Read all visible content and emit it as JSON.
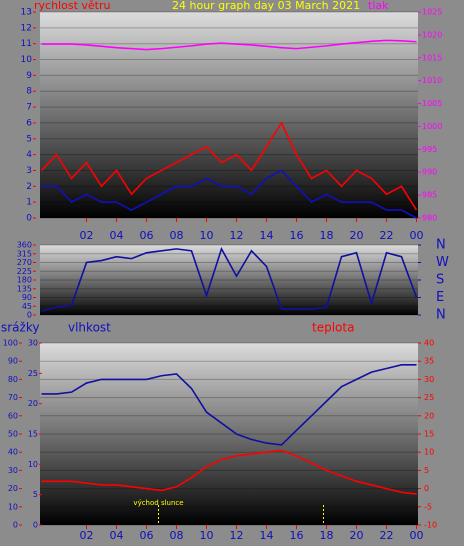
{
  "chart_data": [
    {
      "type": "line",
      "title": "24 hour graph day  03 March 2021",
      "x": [
        -1,
        0,
        1,
        2,
        3,
        4,
        5,
        6,
        7,
        8,
        9,
        10,
        11,
        12,
        13,
        14,
        15,
        16,
        17,
        18,
        19,
        20,
        21,
        22,
        23,
        24
      ],
      "xlim": [
        -1.1,
        24.1
      ],
      "xticks": [
        {
          "value": 2,
          "label": "02"
        },
        {
          "value": 4,
          "label": "04"
        },
        {
          "value": 6,
          "label": "06"
        },
        {
          "value": 8,
          "label": "08"
        },
        10,
        12,
        14,
        16,
        18,
        20,
        22,
        {
          "value": 24,
          "label": "00"
        }
      ],
      "ylim": [
        0,
        13
      ],
      "yticks": [
        0,
        1,
        2,
        3,
        4,
        5,
        6,
        7,
        8,
        9,
        10,
        11,
        12,
        13
      ],
      "y2lim": [
        980,
        1025
      ],
      "y2ticks": [
        980,
        985,
        990,
        995,
        1000,
        1005,
        1010,
        1015,
        1020,
        1025
      ],
      "grid": true,
      "series": [
        {
          "name": "rychlost větru",
          "color": "#ff0000",
          "values": [
            3,
            4,
            2.5,
            3.5,
            2,
            3,
            1.5,
            2.5,
            3,
            3.5,
            4,
            4.5,
            3.5,
            4,
            3,
            4.5,
            6,
            4,
            2.5,
            3,
            2,
            3,
            2.5,
            1.5,
            2,
            0.5
          ]
        },
        {
          "color": "#1010c0",
          "values": [
            2,
            2,
            1,
            1.5,
            1,
            1,
            0.5,
            1,
            1.5,
            2,
            2,
            2.5,
            2,
            2,
            1.5,
            2.5,
            3,
            2,
            1,
            1.5,
            1,
            1,
            1,
            0.5,
            0.5,
            0
          ]
        },
        {
          "name": "tlak",
          "color": "#ff00ff",
          "axis": "y2",
          "values": [
            1018,
            1018,
            1018,
            1017.8,
            1017.5,
            1017.2,
            1017,
            1016.8,
            1017,
            1017.3,
            1017.6,
            1018,
            1018.2,
            1018,
            1017.8,
            1017.5,
            1017.2,
            1017,
            1017.3,
            1017.6,
            1018,
            1018.3,
            1018.6,
            1018.8,
            1018.7,
            1018.5
          ]
        }
      ]
    },
    {
      "type": "line",
      "x": [
        -1,
        0,
        1,
        2,
        3,
        4,
        5,
        6,
        7,
        8,
        9,
        10,
        11,
        12,
        13,
        14,
        15,
        16,
        17,
        18,
        19,
        20,
        21,
        22,
        23,
        24
      ],
      "xlim": [
        -1.1,
        24.1
      ],
      "ylim": [
        0,
        360
      ],
      "yticks": [
        0,
        45,
        90,
        135,
        180,
        225,
        270,
        315,
        360
      ],
      "y2lim": [
        0,
        360
      ],
      "y2ticks": [
        {
          "value": 360,
          "label": "N"
        },
        {
          "value": 270,
          "label": "W"
        },
        {
          "value": 180,
          "label": "S"
        },
        {
          "value": 90,
          "label": "E"
        },
        {
          "value": 0,
          "label": "N"
        }
      ],
      "grid": true,
      "series": [
        {
          "color": "#1010a0",
          "values": [
            20,
            40,
            50,
            270,
            280,
            300,
            290,
            320,
            330,
            340,
            330,
            100,
            340,
            200,
            330,
            250,
            30,
            30,
            30,
            40,
            300,
            320,
            60,
            320,
            300,
            90
          ]
        }
      ]
    },
    {
      "type": "line",
      "x": [
        -1,
        0,
        1,
        2,
        3,
        4,
        5,
        6,
        7,
        8,
        9,
        10,
        11,
        12,
        13,
        14,
        15,
        16,
        17,
        18,
        19,
        20,
        21,
        22,
        23,
        24
      ],
      "xlim": [
        -1.1,
        24.1
      ],
      "xticks": [
        {
          "value": 2,
          "label": "02"
        },
        {
          "value": 4,
          "label": "04"
        },
        {
          "value": 6,
          "label": "06"
        },
        {
          "value": 8,
          "label": "08"
        },
        10,
        12,
        14,
        16,
        18,
        20,
        22,
        {
          "value": 24,
          "label": "00"
        }
      ],
      "ylim": [
        0,
        100
      ],
      "yticks": [
        0,
        10,
        20,
        30,
        40,
        50,
        60,
        70,
        80,
        90,
        100
      ],
      "y3label": "srážky",
      "y3lim": [
        0,
        30
      ],
      "y3ticks": [
        0,
        5,
        10,
        15,
        20,
        25,
        30
      ],
      "y2lim": [
        -10,
        40
      ],
      "y2ticks": [
        -10,
        -5,
        0,
        5,
        10,
        15,
        20,
        25,
        30,
        35,
        40
      ],
      "grid": true,
      "annotations": [
        {
          "text": "východ slunce",
          "x": 6.8
        }
      ],
      "sun_lines": [
        6.8,
        17.8
      ],
      "series": [
        {
          "name": "vlhkost",
          "color": "#1010a0",
          "values": [
            72,
            72,
            73,
            78,
            80,
            80,
            80,
            80,
            82,
            83,
            75,
            62,
            56,
            50,
            47,
            45,
            44,
            52,
            60,
            68,
            76,
            80,
            84,
            86,
            88,
            88
          ]
        },
        {
          "name": "teplota",
          "color": "#ff0000",
          "axis": "y2",
          "values": [
            2,
            2,
            2,
            1.5,
            1,
            1,
            0.5,
            0,
            -0.5,
            0.5,
            3,
            6,
            8,
            9,
            9.5,
            10,
            10.5,
            9,
            7,
            5,
            3.5,
            2,
            1,
            0,
            -1,
            -1.5
          ]
        }
      ]
    }
  ]
}
